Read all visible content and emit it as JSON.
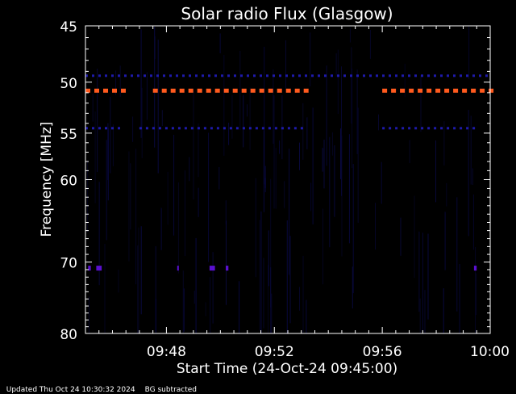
{
  "chart_data": {
    "type": "heatmap",
    "title": "Solar radio Flux (Glasgow)",
    "xlabel": "Start Time (24-Oct-24 09:45:00)",
    "ylabel": "Frequency [MHz]",
    "x_range_minutes_after_start": [
      0,
      15
    ],
    "x_ticks": [
      {
        "label": "09:48",
        "minute": 3
      },
      {
        "label": "09:52",
        "minute": 7
      },
      {
        "label": "09:56",
        "minute": 11
      },
      {
        "label": "10:00",
        "minute": 15
      }
    ],
    "y_range_mhz": [
      45,
      80
    ],
    "y_ticks": [
      {
        "label": "45",
        "value": 45
      },
      {
        "label": "50",
        "value": 50
      },
      {
        "label": "55",
        "value": 55
      },
      {
        "label": "60",
        "value": 60
      },
      {
        "label": "70",
        "value": 70
      },
      {
        "label": "80",
        "value": 80
      }
    ],
    "background_color": "#000000",
    "colors": {
      "low": "#0a0a4a",
      "mid": "#2a1aff",
      "high": "#ff5a1e"
    },
    "features": [
      {
        "freq_mhz": 50.8,
        "intensity": "high",
        "minute_spans": [
          [
            0,
            1.4
          ],
          [
            2.5,
            8.3
          ],
          [
            11.0,
            15
          ]
        ]
      },
      {
        "freq_mhz": 49.4,
        "intensity": "low",
        "minute_spans": [
          [
            0,
            15
          ]
        ]
      },
      {
        "freq_mhz": 54.5,
        "intensity": "low",
        "minute_spans": [
          [
            0,
            1.3
          ],
          [
            2.0,
            8.0
          ],
          [
            11.0,
            14.5
          ]
        ]
      },
      {
        "freq_mhz": 70.8,
        "intensity": "mid",
        "minute_spans": [
          [
            0.1,
            0.2
          ],
          [
            0.4,
            0.6
          ],
          [
            3.4,
            3.45
          ],
          [
            4.6,
            4.8
          ],
          [
            5.2,
            5.3
          ],
          [
            14.4,
            14.5
          ]
        ]
      }
    ]
  },
  "footer": {
    "updated": "Updated Thu Oct 24 10:30:32 2024",
    "note": "BG subtracted"
  }
}
